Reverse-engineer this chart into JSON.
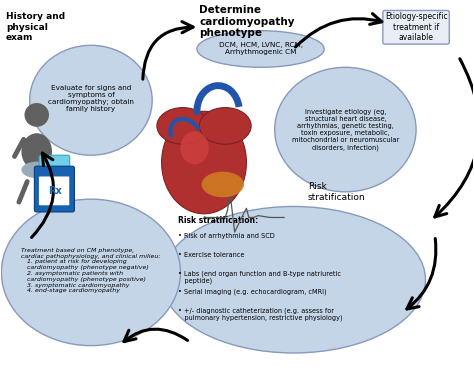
{
  "bg_color": "#ffffff",
  "ellipse_fill": "#c5d5e8",
  "ellipse_edge": "#8899bb",
  "lw": 1.0,
  "title_top_left": "History and\nphysical\nexam",
  "title_top_center": "Determine\ncardiomyopathy\nphenotype",
  "title_top_right": "Etiology-specific\ntreatment if\navailable",
  "text_ellipse1": "Evaluate for signs and\nsymptoms of\ncardiomyopathy; obtain\nfamily history",
  "text_ellipse2": "DCM, HCM, LVNC, RCM,\nArrhythmogenic CM",
  "text_ellipse3": "Investigate etiology (eg,\nstructural heart disease,\narrhythmias, genetic testing,\ntoxin exposure, metabolic,\nmitochondrial or neuromuscular\ndisorders, infection)",
  "text_risk_label": "Risk\nstratification",
  "text_risk_box_title": "Risk stratification:",
  "text_risk_box_items": [
    "Risk of arrhythmia and SCD",
    "Exercise tolerance",
    "Labs (end organ function and B-type natriuretic\n   peptide)",
    "Serial imaging (e.g. echocardiogram, cMRI)",
    "+/- diagnostic catheterization (e.g. assess for\n   pulmonary hypertension, restrictive physiology)"
  ],
  "text_treatment": "Treatment based on CM phenotype,\ncardiac pathophysiology, and clinical milieu:\n   1. patient at risk for developing\n   cardiomyopathy (phenotype negative)\n   2. asymptomatic patients with\n   cardiomyopathy (phenotype positive)\n   3. symptomatic cardiomyopathy\n   4. end-stage cardiomyopathy"
}
